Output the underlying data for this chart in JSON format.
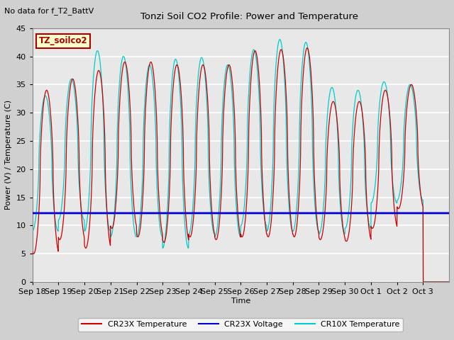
{
  "title": "Tonzi Soil CO2 Profile: Power and Temperature",
  "subtitle": "No data for f_T2_BattV",
  "ylabel": "Power (V) / Temperature (C)",
  "xlabel": "Time",
  "ylim": [
    0,
    45
  ],
  "yticks": [
    0,
    5,
    10,
    15,
    20,
    25,
    30,
    35,
    40,
    45
  ],
  "x_tick_labels": [
    "Sep 18",
    "Sep 19",
    "Sep 20",
    "Sep 21",
    "Sep 22",
    "Sep 23",
    "Sep 24",
    "Sep 25",
    "Sep 26",
    "Sep 27",
    "Sep 28",
    "Sep 29",
    "Sep 30",
    "Oct 1",
    "Oct 2",
    "Oct 3"
  ],
  "num_days": 16,
  "legend_labels": [
    "CR23X Temperature",
    "CR23X Voltage",
    "CR10X Temperature"
  ],
  "legend_colors": [
    "#cc0000",
    "#0000cc",
    "#00cccc"
  ],
  "annotation": "TZ_soilco2",
  "fig_bg_color": "#d0d0d0",
  "plot_bg_color": "#e8e8e8",
  "grid_color": "#ffffff",
  "voltage_level": 12.2,
  "cr23x_peaks": [
    34,
    36,
    37.5,
    39,
    39,
    38.5,
    38.5,
    38.5,
    41,
    41.2,
    41.5,
    32,
    32,
    34,
    35
  ],
  "cr23x_troughs": [
    5,
    7.5,
    6,
    9.5,
    8,
    7,
    8,
    7.5,
    8,
    8,
    8,
    7.5,
    7.2,
    9.5,
    13
  ],
  "cr10x_peaks": [
    33,
    36,
    41,
    40,
    38.5,
    39.5,
    39.8,
    38.5,
    41.2,
    43,
    42.5,
    34.5,
    34,
    35.5,
    35
  ],
  "cr10x_troughs": [
    9,
    11,
    9,
    8,
    8,
    6,
    8.5,
    8,
    10,
    9,
    9,
    8.5,
    9.5,
    14,
    14.5
  ]
}
